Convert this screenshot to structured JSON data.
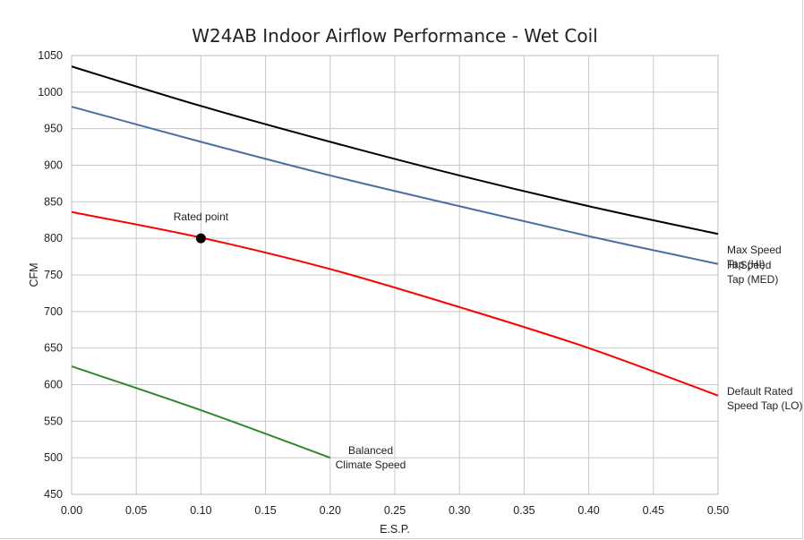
{
  "chart_data": {
    "type": "line",
    "title": "W24AB Indoor Airflow Performance - Wet Coil",
    "xlabel": "E.S.P.",
    "ylabel": "CFM",
    "xlim": [
      0,
      0.5
    ],
    "ylim": [
      450,
      1050
    ],
    "x_ticks": [
      "0.00",
      "0.05",
      "0.10",
      "0.15",
      "0.20",
      "0.25",
      "0.30",
      "0.35",
      "0.40",
      "0.45",
      "0.50"
    ],
    "y_ticks": [
      "450",
      "500",
      "550",
      "600",
      "650",
      "700",
      "750",
      "800",
      "850",
      "900",
      "950",
      "1000",
      "1050"
    ],
    "grid": true,
    "series": [
      {
        "name_lines": [
          "Max Speed",
          "Tap (HI)"
        ],
        "color": "#000000",
        "x": [
          0.0,
          0.1,
          0.2,
          0.3,
          0.4,
          0.5
        ],
        "y": [
          1035,
          981,
          932,
          886,
          844,
          806
        ]
      },
      {
        "name_lines": [
          "Hi Speed",
          "Tap (MED)"
        ],
        "color": "#4a6fa5",
        "x": [
          0.0,
          0.1,
          0.2,
          0.3,
          0.4,
          0.5
        ],
        "y": [
          980,
          932,
          886,
          844,
          803,
          765
        ]
      },
      {
        "name_lines": [
          "Default Rated",
          "Speed Tap (LO)"
        ],
        "color": "#ff0000",
        "x": [
          0.0,
          0.1,
          0.2,
          0.3,
          0.4,
          0.5
        ],
        "y": [
          836,
          801,
          758,
          706,
          650,
          585
        ]
      },
      {
        "name_lines": [
          "Balanced",
          "Climate Speed"
        ],
        "color": "#2e8b2e",
        "x": [
          0.0,
          0.1,
          0.2
        ],
        "y": [
          625,
          565,
          500
        ]
      }
    ],
    "annotations": [
      {
        "text": "Rated point",
        "x": 0.1,
        "y": 800,
        "marker_color": "#000000"
      }
    ]
  }
}
